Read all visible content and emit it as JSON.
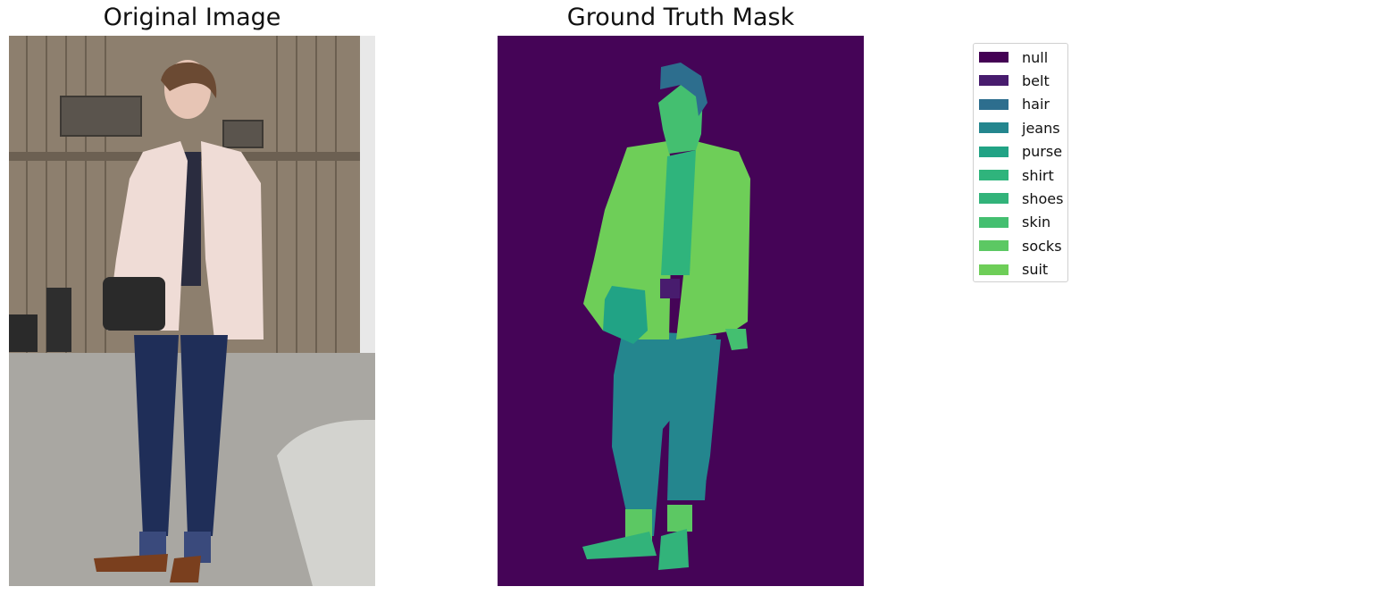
{
  "titles": {
    "left": "Original Image",
    "right": "Ground Truth Mask"
  },
  "legend": {
    "items": [
      {
        "label": "null",
        "color": "#440154"
      },
      {
        "label": "belt",
        "color": "#481c6e"
      },
      {
        "label": "hair",
        "color": "#2d6e8e"
      },
      {
        "label": "jeans",
        "color": "#24868e"
      },
      {
        "label": "purse",
        "color": "#21a385"
      },
      {
        "label": "shirt",
        "color": "#2fb47c"
      },
      {
        "label": "shoes",
        "color": "#32b37a"
      },
      {
        "label": "skin",
        "color": "#44bf70"
      },
      {
        "label": "socks",
        "color": "#5cc863"
      },
      {
        "label": "suit",
        "color": "#6ece58"
      }
    ]
  },
  "mask_colors": {
    "background": "#450457",
    "belt": "#481c6e",
    "hair": "#2d6e8e",
    "jeans": "#24868e",
    "purse": "#21a385",
    "shirt": "#2fb47c",
    "shoes": "#32b37a",
    "skin": "#44bf70",
    "socks": "#5cc863",
    "suit": "#6ece58"
  }
}
